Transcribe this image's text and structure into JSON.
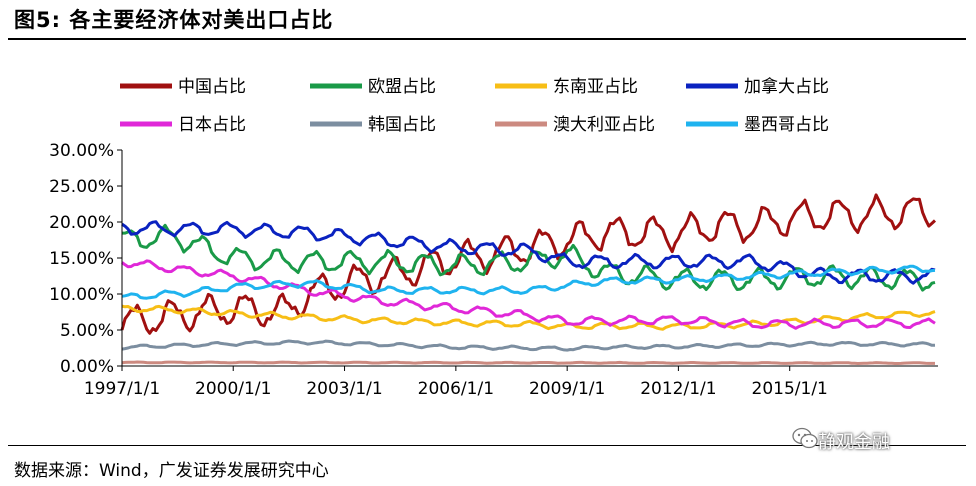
{
  "header": {
    "title": "图5:  各主要经济体对美出口占比"
  },
  "footer": {
    "source": "数据来源：Wind，广发证券发展研究中心",
    "watermark": "静观金融",
    "watermark_icon": "wechat-icon"
  },
  "chart_data": {
    "type": "line",
    "title": "图5:  各主要经济体对美出口占比",
    "xlabel": "",
    "ylabel": "",
    "x_range": [
      "1997-01-01",
      "2018-12-31"
    ],
    "x_ticks": [
      "1997/1/1",
      "2000/1/1",
      "2003/1/1",
      "2006/1/1",
      "2009/1/1",
      "2012/1/1",
      "2015/1/1"
    ],
    "y_ticks": [
      "0.00%",
      "5.00%",
      "10.00%",
      "15.00%",
      "20.00%",
      "25.00%",
      "30.00%"
    ],
    "ylim": [
      0,
      30
    ],
    "grid": false,
    "legend_position": "top",
    "series": [
      {
        "name": "中国占比",
        "color": "#a01010",
        "seasonal_amp": 2.0,
        "points": [
          [
            "1997-01",
            6
          ],
          [
            "1998-06",
            7
          ],
          [
            "2000-01",
            8
          ],
          [
            "2001-06",
            7.5
          ],
          [
            "2002-01",
            10
          ],
          [
            "2003-01",
            11.5
          ],
          [
            "2004-01",
            12.5
          ],
          [
            "2005-01",
            13.5
          ],
          [
            "2006-01",
            15
          ],
          [
            "2007-01",
            15.5
          ],
          [
            "2008-01",
            16.5
          ],
          [
            "2009-01",
            17.5
          ],
          [
            "2010-01",
            18.5
          ],
          [
            "2011-01",
            18.5
          ],
          [
            "2012-01",
            18.5
          ],
          [
            "2013-01",
            19.5
          ],
          [
            "2014-01",
            19.5
          ],
          [
            "2015-01",
            20.5
          ],
          [
            "2016-01",
            21
          ],
          [
            "2017-01",
            21
          ],
          [
            "2018-06",
            21.5
          ]
        ]
      },
      {
        "name": "欧盟占比",
        "color": "#1a9a48",
        "seasonal_amp": 1.3,
        "points": [
          [
            "1997-01",
            17.5
          ],
          [
            "1998-06",
            18
          ],
          [
            "2000-01",
            15
          ],
          [
            "2002-01",
            14.5
          ],
          [
            "2004-01",
            14.5
          ],
          [
            "2006-01",
            14
          ],
          [
            "2008-01",
            14.5
          ],
          [
            "2009-01",
            15.5
          ],
          [
            "2010-01",
            13
          ],
          [
            "2012-01",
            12
          ],
          [
            "2014-01",
            12
          ],
          [
            "2016-01",
            12.5
          ],
          [
            "2018-06",
            12
          ]
        ]
      },
      {
        "name": "东南亚占比",
        "color": "#f7be16",
        "seasonal_amp": 0.35,
        "points": [
          [
            "1997-01",
            8
          ],
          [
            "1998-06",
            7.8
          ],
          [
            "2000-01",
            7.3
          ],
          [
            "2002-01",
            6.8
          ],
          [
            "2004-01",
            6.3
          ],
          [
            "2006-01",
            6
          ],
          [
            "2008-01",
            5.8
          ],
          [
            "2009-01",
            5.5
          ],
          [
            "2010-01",
            5.6
          ],
          [
            "2012-01",
            5.5
          ],
          [
            "2014-01",
            5.8
          ],
          [
            "2016-01",
            6.5
          ],
          [
            "2018-06",
            7.3
          ]
        ]
      },
      {
        "name": "加拿大占比",
        "color": "#0a22c0",
        "seasonal_amp": 0.8,
        "points": [
          [
            "1997-01",
            19.2
          ],
          [
            "1999-01",
            19
          ],
          [
            "2000-01",
            19
          ],
          [
            "2002-01",
            18.5
          ],
          [
            "2004-01",
            17.5
          ],
          [
            "2006-01",
            16.5
          ],
          [
            "2008-01",
            16
          ],
          [
            "2009-01",
            14.5
          ],
          [
            "2010-01",
            14.5
          ],
          [
            "2012-01",
            14.5
          ],
          [
            "2014-01",
            14.5
          ],
          [
            "2015-01",
            13.5
          ],
          [
            "2016-01",
            12.5
          ],
          [
            "2018-06",
            12.5
          ]
        ]
      },
      {
        "name": "日本占比",
        "color": "#e028d8",
        "seasonal_amp": 0.5,
        "points": [
          [
            "1997-01",
            14.5
          ],
          [
            "1998-06",
            13.5
          ],
          [
            "2000-01",
            12.5
          ],
          [
            "2002-01",
            10.5
          ],
          [
            "2004-01",
            9
          ],
          [
            "2006-01",
            8
          ],
          [
            "2008-01",
            7
          ],
          [
            "2009-01",
            6.2
          ],
          [
            "2010-01",
            6.3
          ],
          [
            "2012-01",
            6.4
          ],
          [
            "2014-01",
            5.8
          ],
          [
            "2016-01",
            5.9
          ],
          [
            "2018-06",
            5.9
          ]
        ]
      },
      {
        "name": "韩国占比",
        "color": "#7c8ea0",
        "seasonal_amp": 0.2,
        "points": [
          [
            "1997-01",
            2.6
          ],
          [
            "2000-01",
            3.1
          ],
          [
            "2002-01",
            3.3
          ],
          [
            "2004-01",
            3.0
          ],
          [
            "2006-01",
            2.6
          ],
          [
            "2008-01",
            2.5
          ],
          [
            "2009-01",
            2.4
          ],
          [
            "2010-01",
            2.6
          ],
          [
            "2012-01",
            2.7
          ],
          [
            "2014-01",
            2.9
          ],
          [
            "2016-01",
            3.1
          ],
          [
            "2018-06",
            3.0
          ]
        ]
      },
      {
        "name": "澳大利亚占比",
        "color": "#cc8a80",
        "seasonal_amp": 0.05,
        "points": [
          [
            "1997-01",
            0.5
          ],
          [
            "2018-06",
            0.4
          ]
        ]
      },
      {
        "name": "墨西哥占比",
        "color": "#1fb3ef",
        "seasonal_amp": 0.4,
        "points": [
          [
            "1997-01",
            9.5
          ],
          [
            "1999-01",
            10.3
          ],
          [
            "2000-01",
            11
          ],
          [
            "2002-01",
            11.5
          ],
          [
            "2004-01",
            10.5
          ],
          [
            "2006-01",
            10.5
          ],
          [
            "2008-01",
            10.5
          ],
          [
            "2009-01",
            11.2
          ],
          [
            "2010-01",
            11.8
          ],
          [
            "2012-01",
            12
          ],
          [
            "2014-01",
            12.5
          ],
          [
            "2016-01",
            13
          ],
          [
            "2018-06",
            13.5
          ]
        ]
      }
    ]
  }
}
